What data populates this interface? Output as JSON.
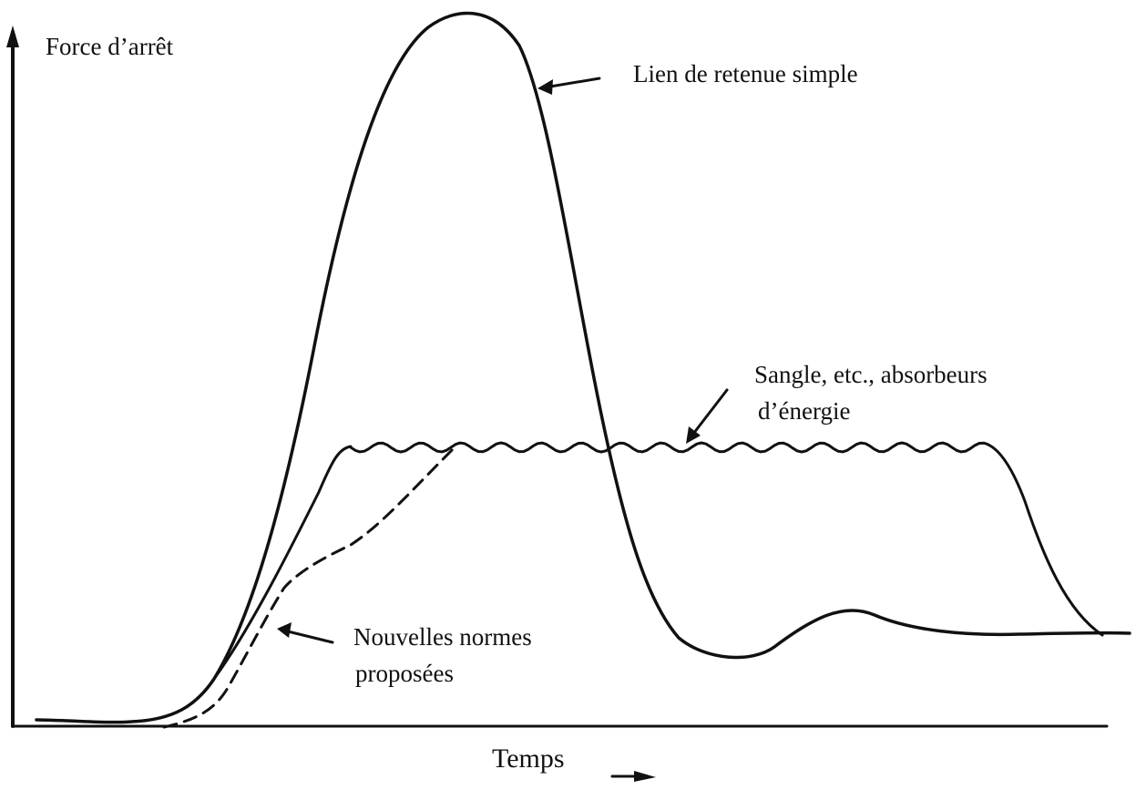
{
  "axes": {
    "y_label": "Force d’arrêt",
    "x_label": "Temps"
  },
  "annotations": [
    {
      "lines": [
        "Lien de retenue simple"
      ]
    },
    {
      "lines": [
        "Sangle, etc., absorbeurs",
        "d’énergie"
      ]
    },
    {
      "lines": [
        "Nouvelles normes",
        "proposées"
      ]
    }
  ]
}
